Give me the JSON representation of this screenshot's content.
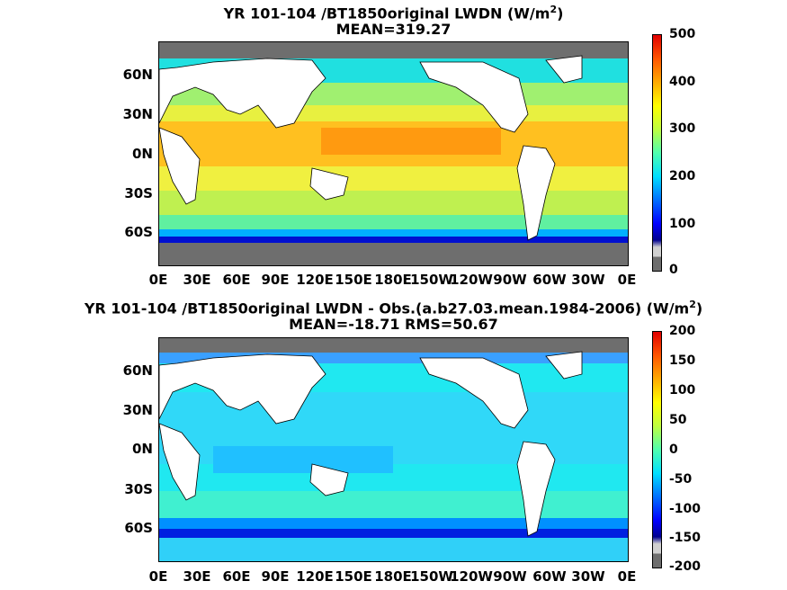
{
  "top": {
    "title_main": "YR 101-104 /BT1850original LWDN (W/m",
    "title_sup": "2",
    "title_end": ")",
    "subtitle": "MEAN=319.27",
    "colorbar_ticks": [
      "500",
      "400",
      "300",
      "200",
      "100",
      "0"
    ]
  },
  "bottom": {
    "title_main": "YR 101-104 /BT1850original LWDN - Obs.(a.b27.03.mean.1984-2006) (W/m",
    "title_sup": "2",
    "title_end": ")",
    "subtitle": "MEAN=-18.71 RMS=50.67",
    "colorbar_ticks": [
      "200",
      "150",
      "100",
      "50",
      "0",
      "-50",
      "-100",
      "-150",
      "-200"
    ]
  },
  "y_ticks": [
    "60N",
    "30N",
    "0N",
    "30S",
    "60S"
  ],
  "x_ticks": [
    "0E",
    "30E",
    "60E",
    "90E",
    "120E",
    "150E",
    "180E",
    "150W",
    "120W",
    "90W",
    "60W",
    "30W",
    "0E"
  ],
  "colors": {
    "land": "#ffffff",
    "ice": "#6e6e6e",
    "jet": [
      "#00008f",
      "#0000ff",
      "#0070ff",
      "#00dfff",
      "#50ffaf",
      "#bfff40",
      "#ffff00",
      "#ffaa00",
      "#ff5500",
      "#e00000"
    ]
  }
}
